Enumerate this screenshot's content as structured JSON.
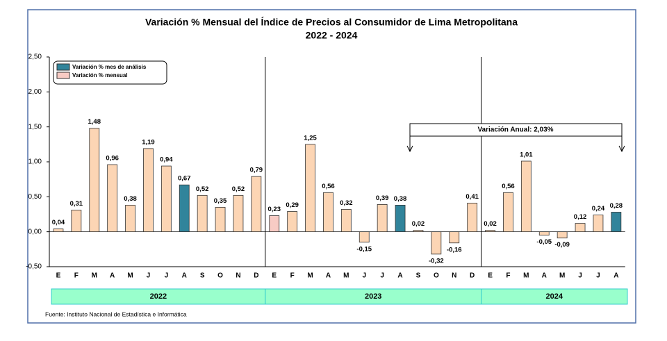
{
  "chart_data": {
    "type": "bar",
    "title": "Variación % Mensual del Índice de Precios al Consumidor de Lima Metropolitana",
    "subtitle": "2022 - 2024",
    "ylim": [
      -0.5,
      2.5
    ],
    "yticks": [
      {
        "value": -0.5,
        "label": "-0,50"
      },
      {
        "value": 0,
        "label": "0,00"
      },
      {
        "value": 0.5,
        "label": "0,50"
      },
      {
        "value": 1,
        "label": "1,00"
      },
      {
        "value": 1.5,
        "label": "1,50"
      },
      {
        "value": 2,
        "label": "2,00"
      },
      {
        "value": 2.5,
        "label": "2,50"
      }
    ],
    "legend": [
      {
        "name": "Variación % mes de análisis",
        "color": "#31849b"
      },
      {
        "name": "Variación % mensual",
        "color": "#f8cbc4"
      }
    ],
    "groups": [
      {
        "label": "2022",
        "categories": [
          "E",
          "F",
          "M",
          "A",
          "M",
          "J",
          "J",
          "A",
          "S",
          "O",
          "N",
          "D"
        ],
        "values": [
          0.04,
          0.31,
          1.48,
          0.96,
          0.38,
          1.19,
          0.94,
          0.67,
          0.52,
          0.35,
          0.52,
          0.79
        ],
        "value_labels": [
          "0,04",
          "0,31",
          "1,48",
          "0,96",
          "0,38",
          "1,19",
          "0,94",
          "0,67",
          "0,52",
          "0,35",
          "0,52",
          "0,79"
        ],
        "colors": [
          "#fcd5b4",
          "#fcd5b4",
          "#fcd5b4",
          "#fcd5b4",
          "#fcd5b4",
          "#fcd5b4",
          "#fcd5b4",
          "#31849b",
          "#fcd5b4",
          "#fcd5b4",
          "#fcd5b4",
          "#fcd5b4"
        ]
      },
      {
        "label": "2023",
        "categories": [
          "E",
          "F",
          "M",
          "A",
          "M",
          "J",
          "J",
          "A",
          "S",
          "O",
          "N",
          "D"
        ],
        "values": [
          0.23,
          0.29,
          1.25,
          0.56,
          0.32,
          -0.15,
          0.39,
          0.38,
          0.02,
          -0.32,
          -0.16,
          0.41
        ],
        "value_labels": [
          "0,23",
          "0,29",
          "1,25",
          "0,56",
          "0,32",
          "-0,15",
          "0,39",
          "0,38",
          "0,02",
          "-0,32",
          "-0,16",
          "0,41"
        ],
        "colors": [
          "#f8cbc4",
          "#fcd5b4",
          "#fcd5b4",
          "#fcd5b4",
          "#fcd5b4",
          "#fcd5b4",
          "#fcd5b4",
          "#31849b",
          "#fcd5b4",
          "#fcd5b4",
          "#fcd5b4",
          "#fcd5b4"
        ]
      },
      {
        "label": "2024",
        "categories": [
          "E",
          "F",
          "M",
          "A",
          "M",
          "J",
          "J",
          "A"
        ],
        "values": [
          0.02,
          0.56,
          1.01,
          -0.05,
          -0.09,
          0.12,
          0.24,
          0.28
        ],
        "value_labels": [
          "0,02",
          "0,56",
          "1,01",
          "-0,05",
          "-0,09",
          "0,12",
          "0,24",
          "0,28"
        ],
        "colors": [
          "#fcd5b4",
          "#fcd5b4",
          "#fcd5b4",
          "#fcd5b4",
          "#fcd5b4",
          "#fcd5b4",
          "#fcd5b4",
          "#31849b"
        ]
      }
    ],
    "annotation": "Variación Anual: 2,03%",
    "source": "Fuente: Instituto  Nacional de Estadística  e Informática"
  }
}
